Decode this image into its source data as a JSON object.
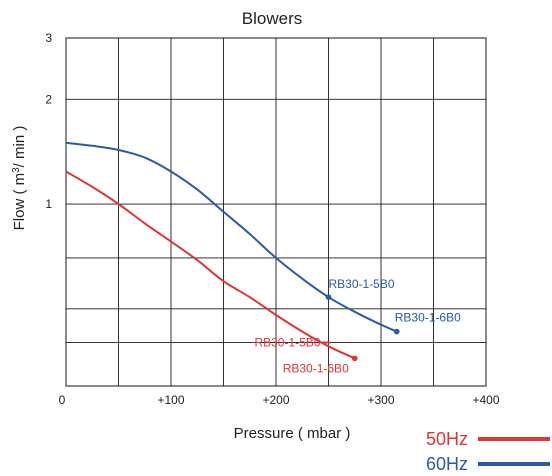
{
  "chart_data": {
    "type": "line",
    "title": "Blowers",
    "xlabel": "Pressure ( mbar )",
    "ylabel": "Flow ( m³/ min )",
    "xlim": [
      0,
      400
    ],
    "x_ticks": [
      0,
      100,
      200,
      300,
      400
    ],
    "x_tick_labels": [
      "0",
      "+100",
      "+200",
      "+300",
      "+400"
    ],
    "y_scale": "log",
    "ylim": [
      0.3,
      3
    ],
    "y_gridlines": [
      0.4,
      0.5,
      0.7,
      1,
      2,
      3
    ],
    "y_ticks": [
      1,
      2,
      3
    ],
    "y_tick_labels": [
      "1",
      "2",
      "3"
    ],
    "grid": true,
    "legend": {
      "position": "bottom-right",
      "entries": [
        {
          "label": "50Hz",
          "color": "#e03535"
        },
        {
          "label": "60Hz",
          "color": "#2a5aa8"
        }
      ]
    },
    "series": [
      {
        "name": "50Hz",
        "color": "#e03535",
        "x": [
          0,
          25,
          50,
          75,
          100,
          125,
          150,
          175,
          200,
          225,
          250,
          275
        ],
        "y": [
          1.24,
          1.12,
          1.0,
          0.88,
          0.78,
          0.69,
          0.6,
          0.54,
          0.48,
          0.43,
          0.39,
          0.36
        ],
        "labeled_points": [
          {
            "x": 250,
            "y": 0.4,
            "label": "RB30-1-5B0"
          },
          {
            "x": 275,
            "y": 0.36,
            "label": "RB30-1-6B0"
          }
        ]
      },
      {
        "name": "60Hz",
        "color": "#2a5aa8",
        "x": [
          0,
          25,
          50,
          75,
          100,
          125,
          150,
          175,
          200,
          225,
          250,
          275,
          300,
          315
        ],
        "y": [
          1.5,
          1.47,
          1.43,
          1.36,
          1.24,
          1.1,
          0.95,
          0.82,
          0.7,
          0.61,
          0.54,
          0.49,
          0.45,
          0.43
        ],
        "labeled_points": [
          {
            "x": 250,
            "y": 0.54,
            "label": "RB30-1-5B0"
          },
          {
            "x": 315,
            "y": 0.43,
            "label": "RB30-1-6B0"
          }
        ]
      }
    ]
  }
}
